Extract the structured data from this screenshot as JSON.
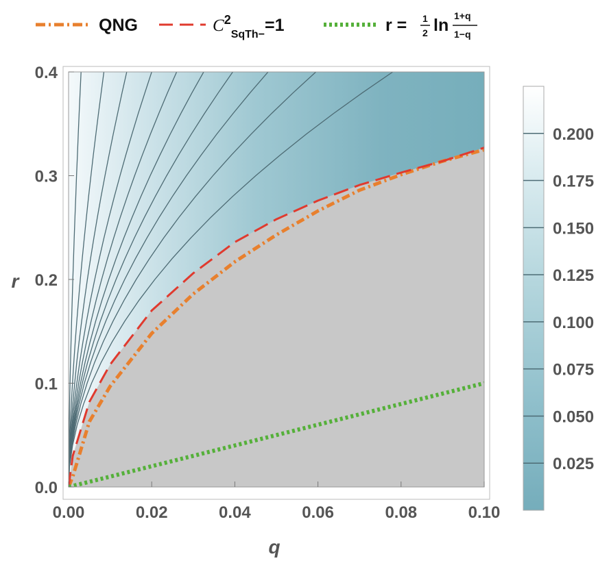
{
  "chart_data": {
    "type": "contour",
    "xlabel": "q",
    "ylabel": "r",
    "xlim": [
      0,
      0.1
    ],
    "ylim": [
      0,
      0.4
    ],
    "x_ticks": [
      0.0,
      0.02,
      0.04,
      0.06,
      0.08,
      0.1
    ],
    "x_tick_labels": [
      "0.00",
      "0.02",
      "0.04",
      "0.06",
      "0.08",
      "0.10"
    ],
    "y_ticks": [
      0.0,
      0.1,
      0.2,
      0.3,
      0.4
    ],
    "y_tick_labels": [
      "0.0",
      "0.1",
      "0.2",
      "0.3",
      "0.4"
    ],
    "colorbar": {
      "ticks": [
        0.025,
        0.05,
        0.075,
        0.1,
        0.125,
        0.15,
        0.175,
        0.2
      ],
      "tick_labels": [
        "0.025",
        "0.050",
        "0.075",
        "0.100",
        "0.125",
        "0.150",
        "0.175",
        "0.200"
      ],
      "range": [
        0,
        0.225
      ],
      "color_low": "#75adbb",
      "color_high": "#ffffff"
    },
    "excluded_region_color": "#c8c8c8",
    "legend_position": "top",
    "series": [
      {
        "name": "QNG",
        "style": "dash-dot",
        "color": "#e8802e",
        "x": [
          0.0,
          0.001,
          0.005,
          0.01,
          0.02,
          0.03,
          0.04,
          0.05,
          0.06,
          0.07,
          0.08,
          0.09,
          0.1
        ],
        "y": [
          0.0,
          0.01,
          0.063,
          0.097,
          0.148,
          0.186,
          0.217,
          0.243,
          0.266,
          0.286,
          0.301,
          0.314,
          0.325
        ]
      },
      {
        "name": "C²SqTh−=1",
        "style": "dashed",
        "color": "#e03a2e",
        "x": [
          0.0,
          0.001,
          0.005,
          0.01,
          0.02,
          0.03,
          0.04,
          0.05,
          0.06,
          0.07,
          0.08,
          0.09,
          0.1
        ],
        "y": [
          0.0,
          0.03,
          0.082,
          0.118,
          0.17,
          0.206,
          0.236,
          0.258,
          0.276,
          0.291,
          0.303,
          0.314,
          0.327
        ]
      },
      {
        "name": "r = ½ ln((1+q)/(1−q))",
        "style": "dotted",
        "color": "#55b03a",
        "x": [
          0.0,
          0.1
        ],
        "y": [
          0.0,
          0.1
        ]
      }
    ]
  },
  "legend": {
    "qng": "QNG",
    "csq_c": "C",
    "csq_exp": "2",
    "csq_sub": "SqTh−",
    "csq_rest": "=1",
    "r_lhs": "r =",
    "r_half_num": "1",
    "r_half_den": "2",
    "r_ln": "ln",
    "r_frac_num": "1+q",
    "r_frac_den": "1−q"
  }
}
